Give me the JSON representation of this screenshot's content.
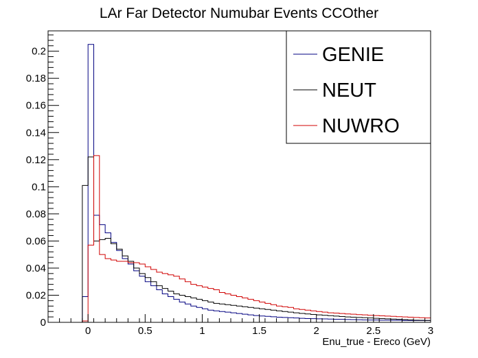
{
  "chart_data": {
    "type": "line",
    "title": "LAr Far Detector Numubar Events CCOther",
    "xlabel": "Enu_true - Ereco (GeV)",
    "ylabel": "",
    "xlim": [
      -0.35,
      3.0
    ],
    "ylim": [
      0,
      0.215
    ],
    "x_ticks": [
      0,
      0.5,
      1,
      1.5,
      2,
      2.5,
      3
    ],
    "x_tick_labels": [
      "0",
      "0.5",
      "1",
      "1.5",
      "2",
      "2.5",
      "3"
    ],
    "y_ticks": [
      0,
      0.02,
      0.04,
      0.06,
      0.08,
      0.1,
      0.12,
      0.14,
      0.16,
      0.18,
      0.2
    ],
    "y_tick_labels": [
      "0",
      "0.02",
      "0.04",
      "0.06",
      "0.08",
      "0.1",
      "0.12",
      "0.14",
      "0.16",
      "0.18",
      "0.2"
    ],
    "grid": false,
    "legend_position": "top-right",
    "bin_edges": [
      -0.35,
      -0.3,
      -0.25,
      -0.2,
      -0.15,
      -0.1,
      -0.05,
      0.0,
      0.05,
      0.1,
      0.15,
      0.2,
      0.25,
      0.3,
      0.35,
      0.4,
      0.45,
      0.5,
      0.55,
      0.6,
      0.65,
      0.7,
      0.75,
      0.8,
      0.85,
      0.9,
      0.95,
      1.0,
      1.05,
      1.1,
      1.15,
      1.2,
      1.25,
      1.3,
      1.35,
      1.4,
      1.45,
      1.5,
      1.55,
      1.6,
      1.65,
      1.7,
      1.75,
      1.8,
      1.85,
      1.9,
      1.95,
      2.0,
      2.05,
      2.1,
      2.15,
      2.2,
      2.25,
      2.3,
      2.35,
      2.4,
      2.45,
      2.5,
      2.55,
      2.6,
      2.65,
      2.7,
      2.75,
      2.8,
      2.85,
      2.9,
      2.95,
      3.0
    ],
    "series": [
      {
        "name": "GENIE",
        "color": "#000080",
        "values": [
          0,
          0,
          0,
          0,
          0,
          0,
          0.019,
          0.205,
          0.079,
          0.072,
          0.066,
          0.059,
          0.053,
          0.047,
          0.043,
          0.038,
          0.034,
          0.03,
          0.027,
          0.024,
          0.021,
          0.019,
          0.017,
          0.015,
          0.0135,
          0.012,
          0.011,
          0.01,
          0.009,
          0.0085,
          0.008,
          0.0075,
          0.007,
          0.0065,
          0.006,
          0.0055,
          0.005,
          0.0047,
          0.0044,
          0.0041,
          0.0038,
          0.0036,
          0.0034,
          0.0032,
          0.003,
          0.0028,
          0.0027,
          0.0026,
          0.0025,
          0.0024,
          0.0023,
          0.0022,
          0.0021,
          0.002,
          0.0019,
          0.0018,
          0.0017,
          0.0017,
          0.0016,
          0.0016,
          0.0015,
          0.0015,
          0.0014,
          0.0014,
          0.0013,
          0.0013,
          0.0013
        ]
      },
      {
        "name": "NEUT",
        "color": "#000000",
        "values": [
          0,
          0,
          0,
          0,
          0,
          0,
          0.101,
          0.122,
          0.06,
          0.061,
          0.062,
          0.058,
          0.054,
          0.049,
          0.045,
          0.04,
          0.036,
          0.033,
          0.03,
          0.027,
          0.025,
          0.023,
          0.021,
          0.02,
          0.019,
          0.018,
          0.017,
          0.016,
          0.015,
          0.014,
          0.0135,
          0.013,
          0.0125,
          0.012,
          0.0115,
          0.011,
          0.0105,
          0.01,
          0.0095,
          0.009,
          0.0085,
          0.008,
          0.0075,
          0.007,
          0.0066,
          0.0062,
          0.0058,
          0.0055,
          0.0052,
          0.0049,
          0.0046,
          0.0043,
          0.004,
          0.0038,
          0.0036,
          0.0034,
          0.0032,
          0.003,
          0.0028,
          0.0026,
          0.0024,
          0.0022,
          0.002,
          0.0018,
          0.0016,
          0.0015,
          0.0014
        ]
      },
      {
        "name": "NUWRO",
        "color": "#d00000",
        "values": [
          0,
          0,
          0,
          0,
          0,
          0,
          0.001,
          0.057,
          0.123,
          0.05,
          0.047,
          0.046,
          0.045,
          0.045,
          0.044,
          0.044,
          0.043,
          0.041,
          0.039,
          0.037,
          0.036,
          0.035,
          0.034,
          0.032,
          0.03,
          0.028,
          0.027,
          0.026,
          0.025,
          0.024,
          0.022,
          0.021,
          0.02,
          0.019,
          0.018,
          0.017,
          0.016,
          0.015,
          0.014,
          0.013,
          0.012,
          0.0115,
          0.011,
          0.01,
          0.0095,
          0.009,
          0.0085,
          0.008,
          0.0075,
          0.007,
          0.0068,
          0.0065,
          0.0062,
          0.006,
          0.0057,
          0.0055,
          0.0052,
          0.005,
          0.0048,
          0.0046,
          0.0044,
          0.0042,
          0.004,
          0.0038,
          0.0036,
          0.0034,
          0.0032
        ]
      }
    ]
  }
}
